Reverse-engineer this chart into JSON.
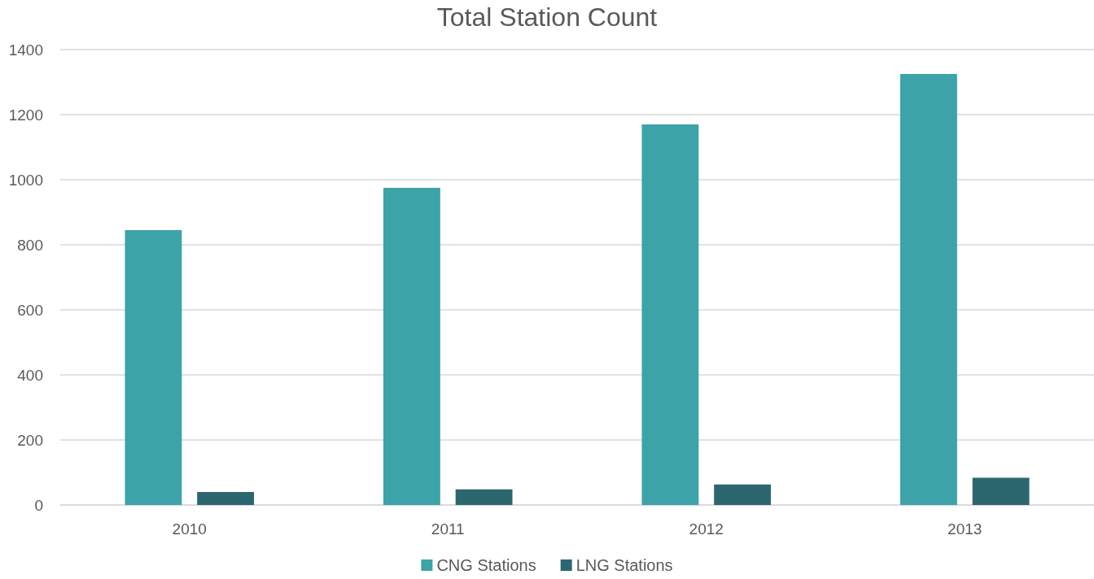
{
  "chart_data": {
    "type": "bar",
    "title": "Total Station Count",
    "categories": [
      "2010",
      "2011",
      "2012",
      "2013"
    ],
    "series": [
      {
        "name": "CNG Stations",
        "color": "#3ca3a8",
        "values": [
          845,
          975,
          1170,
          1325
        ]
      },
      {
        "name": "LNG Stations",
        "color": "#2c6770",
        "values": [
          40,
          48,
          63,
          84
        ]
      }
    ],
    "ylim": [
      0,
      1400
    ],
    "yticks": [
      0,
      200,
      400,
      600,
      800,
      1000,
      1200,
      1400
    ],
    "grid": "y",
    "legend": "bottom"
  }
}
